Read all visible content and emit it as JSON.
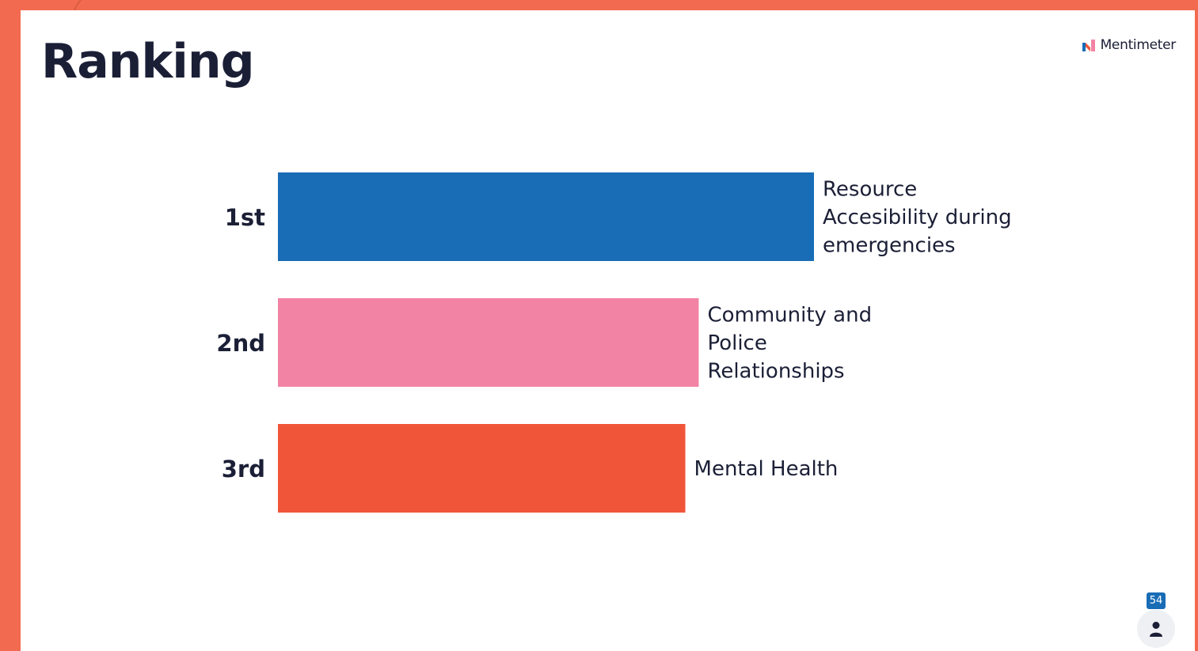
{
  "slide": {
    "title": "Ranking",
    "brand": "Mentimeter"
  },
  "participants": {
    "count": "54"
  },
  "colors": {
    "background": "#F26A4F",
    "slide": "#FFFFFF",
    "text": "#1B1F36",
    "badge": "#196CB6"
  },
  "icons": {
    "brand": "mentimeter-logo-icon",
    "participants": "person-icon"
  },
  "chart_data": {
    "type": "bar",
    "orientation": "horizontal",
    "categories": [
      "1st",
      "2nd",
      "3rd"
    ],
    "values": [
      100,
      78.5,
      76
    ],
    "bar_labels": [
      [
        "Resource",
        "Accesibility during",
        "emergencies"
      ],
      [
        "Community and",
        "Police",
        "Relationships"
      ],
      [
        "Mental Health"
      ]
    ],
    "colors": [
      "#196CB6",
      "#F283A5",
      "#F0553A"
    ],
    "title": "",
    "xlabel": "",
    "ylabel": "",
    "grid": false,
    "axis_ticks": false
  }
}
